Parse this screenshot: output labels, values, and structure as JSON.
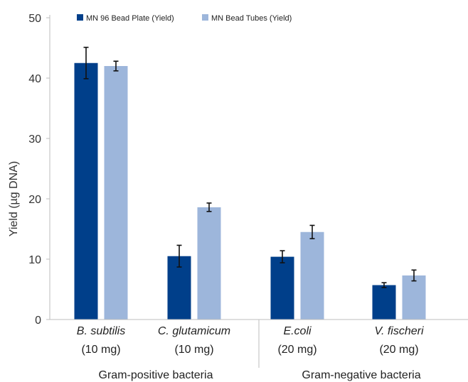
{
  "chart_data": {
    "type": "bar",
    "ylabel": "Yield (µg DNA)",
    "ylim": [
      0,
      50
    ],
    "yticks": [
      0,
      10,
      20,
      30,
      40,
      50
    ],
    "grid": false,
    "legend_position": "top-left",
    "categories": [
      {
        "name": "B. subtilis",
        "amount": "(10 mg)"
      },
      {
        "name": "C. glutamicum",
        "amount": "(10 mg)"
      },
      {
        "name": "E.coli",
        "amount": "(20 mg)"
      },
      {
        "name": "V. fischeri",
        "amount": "(20 mg)"
      }
    ],
    "groups": [
      {
        "label": "Gram-positive bacteria",
        "categories": [
          0,
          1
        ]
      },
      {
        "label": "Gram-negative bacteria",
        "categories": [
          2,
          3
        ]
      }
    ],
    "series": [
      {
        "name": "MN 96 Bead Plate (Yield)",
        "color": "#003f8a",
        "values": [
          42.5,
          10.5,
          10.4,
          5.7
        ],
        "errors": [
          2.6,
          1.8,
          1.0,
          0.4
        ]
      },
      {
        "name": "MN Bead Tubes (Yield)",
        "color": "#9db6db",
        "values": [
          42.0,
          18.6,
          14.5,
          7.3
        ],
        "errors": [
          0.8,
          0.7,
          1.1,
          0.9
        ]
      }
    ]
  }
}
